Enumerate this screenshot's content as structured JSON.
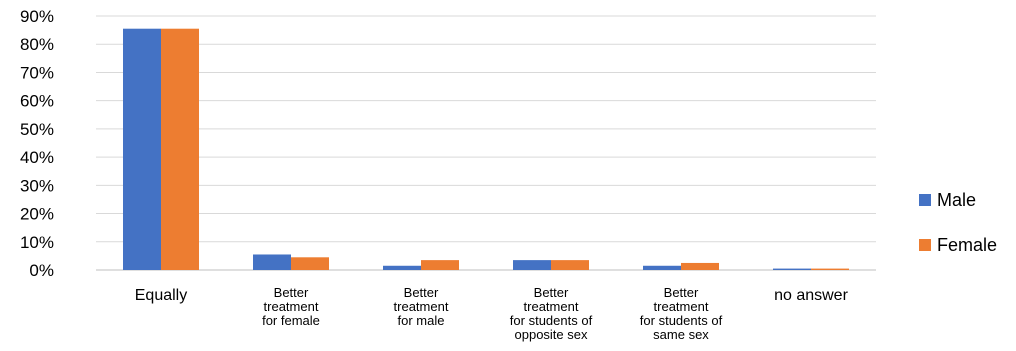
{
  "chart_data": {
    "type": "bar",
    "categories": [
      [
        "Equally"
      ],
      [
        "Better",
        "treatment",
        "for female"
      ],
      [
        "Better",
        "treatment",
        "for male"
      ],
      [
        "Better",
        "treatment",
        "for students of",
        "opposite sex"
      ],
      [
        "Better",
        "treatment",
        "for students of",
        "same sex"
      ],
      [
        "no answer"
      ]
    ],
    "series": [
      {
        "name": "Male",
        "color": "#4472C4",
        "values": [
          85.5,
          5.5,
          1.5,
          3.5,
          1.5,
          0.5
        ]
      },
      {
        "name": "Female",
        "color": "#ED7D31",
        "values": [
          85.5,
          4.5,
          3.5,
          3.5,
          2.5,
          0.5
        ]
      }
    ],
    "ylim": [
      0,
      90
    ],
    "yticks": [
      "0%",
      "10%",
      "20%",
      "30%",
      "40%",
      "50%",
      "60%",
      "70%",
      "80%",
      "90%"
    ],
    "grid": true,
    "legend_position": "right"
  }
}
